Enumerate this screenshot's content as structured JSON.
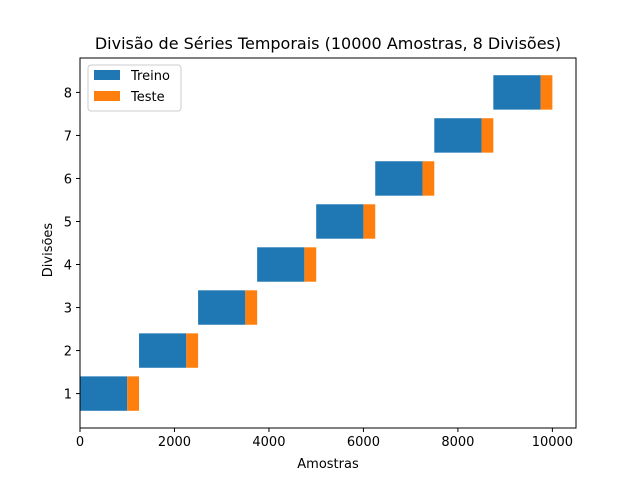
{
  "chart_data": {
    "type": "bar",
    "orientation": "horizontal-stacked",
    "title": "Divisão de Séries Temporais (10000 Amostras, 8 Divisões)",
    "xlabel": "Amostras",
    "ylabel": "Divisões",
    "xlim": [
      0,
      10500
    ],
    "ylim": [
      0.2,
      8.8
    ],
    "xticks": [
      0,
      2000,
      4000,
      6000,
      8000,
      10000
    ],
    "yticks": [
      1,
      2,
      3,
      4,
      5,
      6,
      7,
      8
    ],
    "grid": false,
    "legend_position": "top-left",
    "categories": [
      1,
      2,
      3,
      4,
      5,
      6,
      7,
      8
    ],
    "series": [
      {
        "name": "Treino",
        "color": "#1f77b4",
        "start": [
          0,
          1250,
          2500,
          3750,
          5000,
          6250,
          7500,
          8750
        ],
        "length": [
          1000,
          1000,
          1000,
          1000,
          1000,
          1000,
          1000,
          1000
        ]
      },
      {
        "name": "Teste",
        "color": "#ff7f0e",
        "start": [
          1000,
          2250,
          3500,
          4750,
          6000,
          7250,
          8500,
          9750
        ],
        "length": [
          250,
          250,
          250,
          250,
          250,
          250,
          250,
          250
        ]
      }
    ]
  }
}
